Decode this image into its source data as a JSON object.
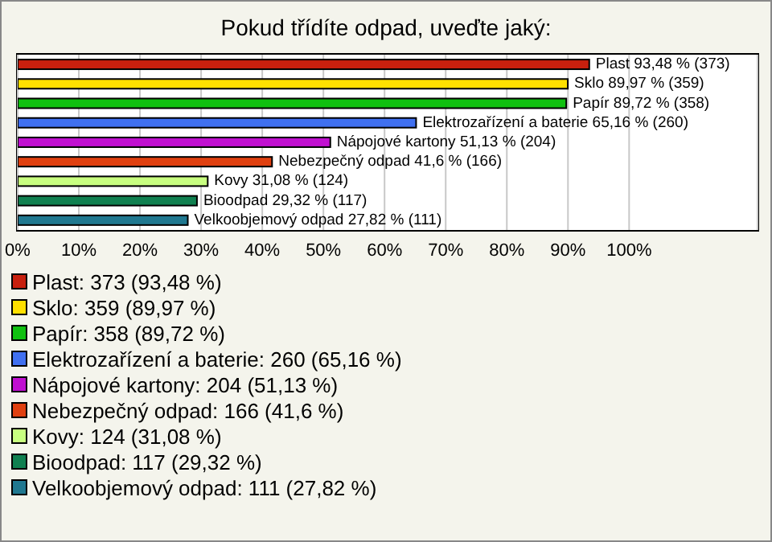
{
  "chart_data": {
    "type": "bar",
    "orientation": "horizontal",
    "stacked": true,
    "title": "Pokud třídíte odpad, uveďte jaký:",
    "categories": [
      null,
      null,
      null,
      null,
      null,
      null,
      null,
      null,
      null
    ],
    "xlim": [
      0,
      121
    ],
    "xticks": [
      {
        "value": 0,
        "label": "0%"
      },
      {
        "value": 10,
        "label": "10%"
      },
      {
        "value": 20,
        "label": "20%"
      },
      {
        "value": 30,
        "label": "30%"
      },
      {
        "value": 40,
        "label": "40%"
      },
      {
        "value": 50,
        "label": "50%"
      },
      {
        "value": 60,
        "label": "60%"
      },
      {
        "value": 70,
        "label": "70%"
      },
      {
        "value": 80,
        "label": "80%"
      },
      {
        "value": 90,
        "label": "90%"
      },
      {
        "value": 100,
        "label": "100%"
      }
    ],
    "grid": "x",
    "legend": "bottom",
    "series": [
      {
        "name": "Plast: 373 (93,48 %)",
        "color": "#c8200e",
        "values": [
          93.48,
          null,
          null,
          null,
          null,
          null,
          null,
          null,
          null
        ],
        "value_labels": [
          "Plast 93,48 % (373)",
          null,
          null,
          null,
          null,
          null,
          null,
          null,
          null
        ]
      },
      {
        "name": "Sklo: 359 (89,97 %)",
        "color": "#ffe000",
        "values": [
          null,
          89.97,
          null,
          null,
          null,
          null,
          null,
          null,
          null
        ],
        "value_labels": [
          null,
          "Sklo 89,97 % (359)",
          null,
          null,
          null,
          null,
          null,
          null,
          null
        ]
      },
      {
        "name": "Papír: 358 (89,72 %)",
        "color": "#10c010",
        "values": [
          null,
          null,
          89.72,
          null,
          null,
          null,
          null,
          null,
          null
        ],
        "value_labels": [
          null,
          null,
          "Papír 89,72 % (358)",
          null,
          null,
          null,
          null,
          null,
          null
        ]
      },
      {
        "name": "Elektrozařízení a baterie: 260 (65,16 %)",
        "color": "#4070f0",
        "values": [
          null,
          null,
          null,
          65.16,
          null,
          null,
          null,
          null,
          null
        ],
        "value_labels": [
          null,
          null,
          null,
          "Elektrozařízení a baterie 65,16 % (260)",
          null,
          null,
          null,
          null,
          null
        ]
      },
      {
        "name": "Nápojové kartony: 204 (51,13 %)",
        "color": "#c010d0",
        "values": [
          null,
          null,
          null,
          null,
          51.13,
          null,
          null,
          null,
          null
        ],
        "value_labels": [
          null,
          null,
          null,
          null,
          "Nápojové kartony 51,13 % (204)",
          null,
          null,
          null,
          null
        ]
      },
      {
        "name": "Nebezpečný odpad: 166 (41,6 %)",
        "color": "#e04010",
        "values": [
          null,
          null,
          null,
          null,
          null,
          41.6,
          null,
          null,
          null
        ],
        "value_labels": [
          null,
          null,
          null,
          null,
          null,
          "Nebezpečný odpad 41,6 % (166)",
          null,
          null,
          null
        ]
      },
      {
        "name": "Kovy: 124 (31,08 %)",
        "color": "#c8ff80",
        "values": [
          null,
          null,
          null,
          null,
          null,
          null,
          31.08,
          null,
          null
        ],
        "value_labels": [
          null,
          null,
          null,
          null,
          null,
          null,
          "Kovy 31,08 % (124)",
          null,
          null
        ]
      },
      {
        "name": "Bioodpad: 117 (29,32 %)",
        "color": "#108050",
        "values": [
          null,
          null,
          null,
          null,
          null,
          null,
          null,
          29.32,
          null
        ],
        "value_labels": [
          null,
          null,
          null,
          null,
          null,
          null,
          null,
          "Bioodpad 29,32 % (117)",
          null
        ]
      },
      {
        "name": "Velkoobjemový odpad: 111 (27,82 %)",
        "color": "#207890",
        "values": [
          null,
          null,
          null,
          null,
          null,
          null,
          null,
          null,
          27.82
        ],
        "value_labels": [
          null,
          null,
          null,
          null,
          null,
          null,
          null,
          null,
          "Velkoobjemový odpad 27,82 % (111)"
        ]
      }
    ]
  }
}
